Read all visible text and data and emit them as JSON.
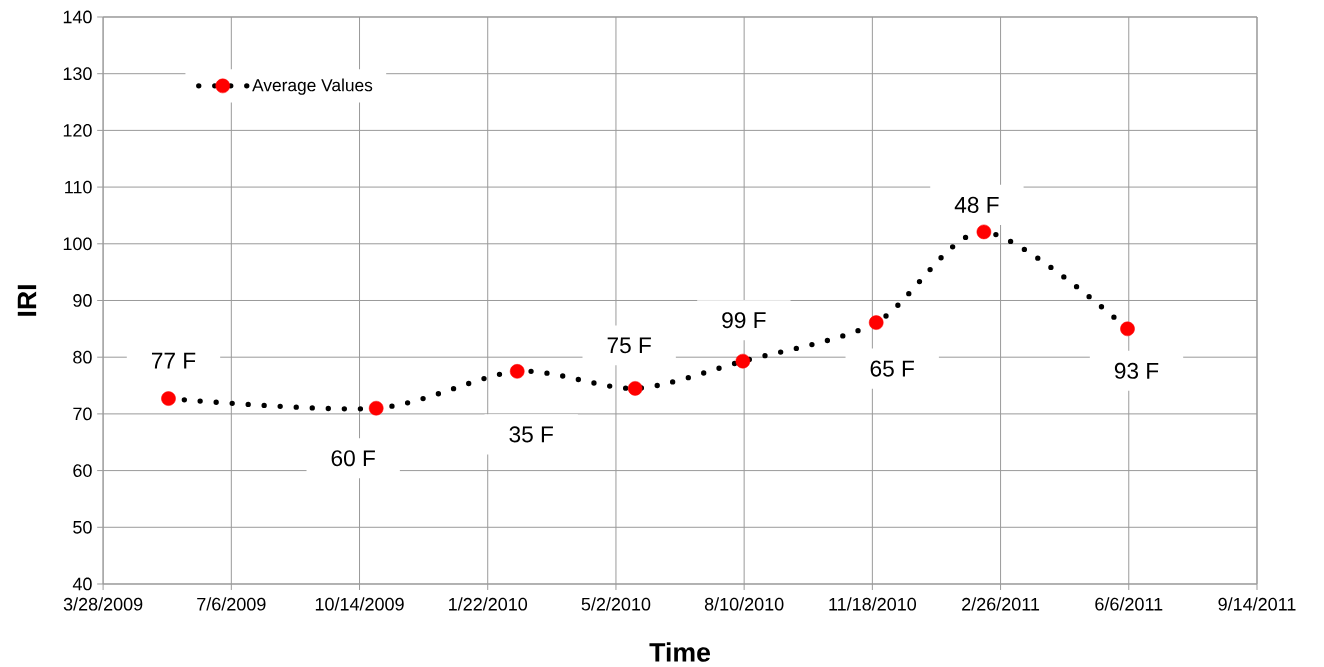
{
  "chart_data": {
    "type": "line",
    "xlabel": "Time",
    "ylabel": "IRI",
    "x": [
      "2009-05-18",
      "2009-10-27",
      "2010-02-14",
      "2010-05-17",
      "2010-08-09",
      "2010-11-21",
      "2011-02-13",
      "2011-06-05"
    ],
    "series": [
      {
        "name": "Average Values",
        "color": "#000000",
        "colors": [
          "#ff0000",
          "#ff0000",
          "#ff0000",
          "#ff0000",
          "#ff0000",
          "#ff0000",
          "#ff0000",
          "#ff0000"
        ],
        "values": [
          72.7,
          71.0,
          77.5,
          74.5,
          79.3,
          86.1,
          102.1,
          85.0
        ]
      }
    ],
    "xlim": [
      "2009-03-28",
      "2011-09-14"
    ],
    "xticks": [
      {
        "value": "2009-03-28",
        "label": "3/28/2009"
      },
      {
        "value": "2009-07-06",
        "label": "7/6/2009"
      },
      {
        "value": "2009-10-14",
        "label": "10/14/2009"
      },
      {
        "value": "2010-01-22",
        "label": "1/22/2010"
      },
      {
        "value": "2010-05-02",
        "label": "5/2/2010"
      },
      {
        "value": "2010-08-10",
        "label": "8/10/2010"
      },
      {
        "value": "2010-11-18",
        "label": "11/18/2010"
      },
      {
        "value": "2011-02-26",
        "label": "2/26/2011"
      },
      {
        "value": "2011-06-06",
        "label": "6/6/2011"
      },
      {
        "value": "2011-09-14",
        "label": "9/14/2011"
      }
    ],
    "ylim": [
      40,
      140
    ],
    "yticks": [
      40,
      50,
      60,
      70,
      80,
      90,
      100,
      110,
      120,
      130,
      140
    ],
    "grid": true,
    "legend": "top left",
    "marker": "circle",
    "line_style": "dotted",
    "annotations": [
      {
        "text": "77 F",
        "x": "2009-05-18",
        "y": 72.7
      },
      {
        "text": "60 F",
        "x": "2009-10-27",
        "y": 71.0
      },
      {
        "text": "35 F",
        "x": "2010-02-14",
        "y": 77.5
      },
      {
        "text": "75 F",
        "x": "2010-05-17",
        "y": 74.5
      },
      {
        "text": "99 F",
        "x": "2010-08-09",
        "y": 79.3
      },
      {
        "text": "65 F",
        "x": "2010-11-21",
        "y": 86.1
      },
      {
        "text": "48 F",
        "x": "2011-02-13",
        "y": 102.1
      },
      {
        "text": "93 F",
        "x": "2011-06-05",
        "y": 85.0
      }
    ]
  }
}
